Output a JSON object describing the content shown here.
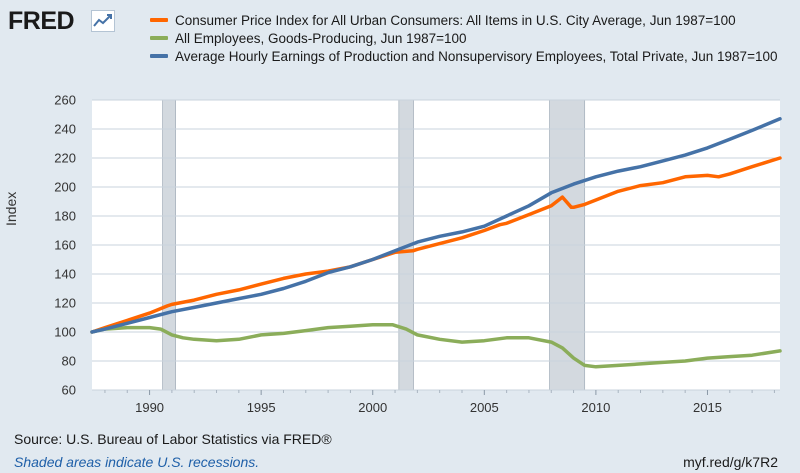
{
  "logo": {
    "text": "FRED"
  },
  "colors": {
    "background": "#e1e9f0",
    "plot_background": "#ffffff",
    "grid": "#c9d3dc",
    "recession": "#d3d9df"
  },
  "chart_data": {
    "type": "line",
    "title": "",
    "xlabel": "",
    "ylabel": "Index",
    "xlim": [
      1987.42,
      2018.25
    ],
    "ylim": [
      60,
      260
    ],
    "yticks": [
      60,
      80,
      100,
      120,
      140,
      160,
      180,
      200,
      220,
      240,
      260
    ],
    "xticks": [
      1990,
      1995,
      2000,
      2005,
      2010,
      2015
    ],
    "grid": "horizontal",
    "legend": "top",
    "recessions": [
      [
        1990.58,
        1991.17
      ],
      [
        2001.17,
        2001.83
      ],
      [
        2007.92,
        2009.5
      ]
    ],
    "series": [
      {
        "name": "Consumer Price Index for All Urban Consumers: All Items in U.S. City Average, Jun 1987=100",
        "color": "#ff6600",
        "x": [
          1987.42,
          1988,
          1989,
          1990,
          1990.8,
          1991,
          1992,
          1993,
          1994,
          1995,
          1996,
          1997,
          1998,
          1999,
          2000,
          2001,
          2001.8,
          2002,
          2003,
          2004,
          2005,
          2005.7,
          2006,
          2007,
          2008,
          2008.5,
          2008.9,
          2009,
          2009.5,
          2010,
          2011,
          2012,
          2013,
          2014,
          2015,
          2015.5,
          2016,
          2017,
          2018.25
        ],
        "y": [
          100,
          103,
          108,
          113,
          118,
          119,
          122,
          126,
          129,
          133,
          137,
          140,
          142,
          145,
          150,
          155,
          156,
          157,
          161,
          165,
          170,
          174,
          175,
          181,
          187,
          193,
          186,
          186,
          188,
          191,
          197,
          201,
          203,
          207,
          208,
          207,
          209,
          214,
          220
        ]
      },
      {
        "name": "All Employees, Goods-Producing, Jun 1987=100",
        "color": "#8bad5a",
        "x": [
          1987.42,
          1988,
          1989,
          1990,
          1990.5,
          1991,
          1991.5,
          1992,
          1993,
          1994,
          1995,
          1996,
          1997,
          1998,
          1999,
          2000,
          2000.9,
          2001.5,
          2002,
          2003,
          2004,
          2005,
          2006,
          2007,
          2008,
          2008.5,
          2009,
          2009.5,
          2010,
          2011,
          2012,
          2013,
          2014,
          2015,
          2016,
          2017,
          2018.25
        ],
        "y": [
          100,
          102,
          103,
          103,
          102,
          98,
          96,
          95,
          94,
          95,
          98,
          99,
          101,
          103,
          104,
          105,
          105,
          102,
          98,
          95,
          93,
          94,
          96,
          96,
          93,
          89,
          82,
          77,
          76,
          77,
          78,
          79,
          80,
          82,
          83,
          84,
          87
        ]
      },
      {
        "name": "Average Hourly Earnings of Production and Nonsupervisory Employees, Total Private, Jun 1987=100",
        "color": "#4572a7",
        "x": [
          1987.42,
          1988,
          1989,
          1990,
          1991,
          1992,
          1993,
          1994,
          1995,
          1996,
          1997,
          1998,
          1999,
          2000,
          2001,
          2002,
          2003,
          2004,
          2005,
          2006,
          2007,
          2008,
          2009,
          2010,
          2011,
          2012,
          2013,
          2014,
          2015,
          2016,
          2017,
          2018.25
        ],
        "y": [
          100,
          102,
          106,
          110,
          114,
          117,
          120,
          123,
          126,
          130,
          135,
          141,
          145,
          150,
          156,
          162,
          166,
          169,
          173,
          180,
          187,
          196,
          202,
          207,
          211,
          214,
          218,
          222,
          227,
          233,
          239,
          247
        ]
      }
    ]
  },
  "footer": {
    "source": "Source: U.S. Bureau of Labor Statistics via FRED®",
    "note": "Shaded areas indicate U.S. recessions.",
    "url": "myf.red/g/k7R2"
  }
}
